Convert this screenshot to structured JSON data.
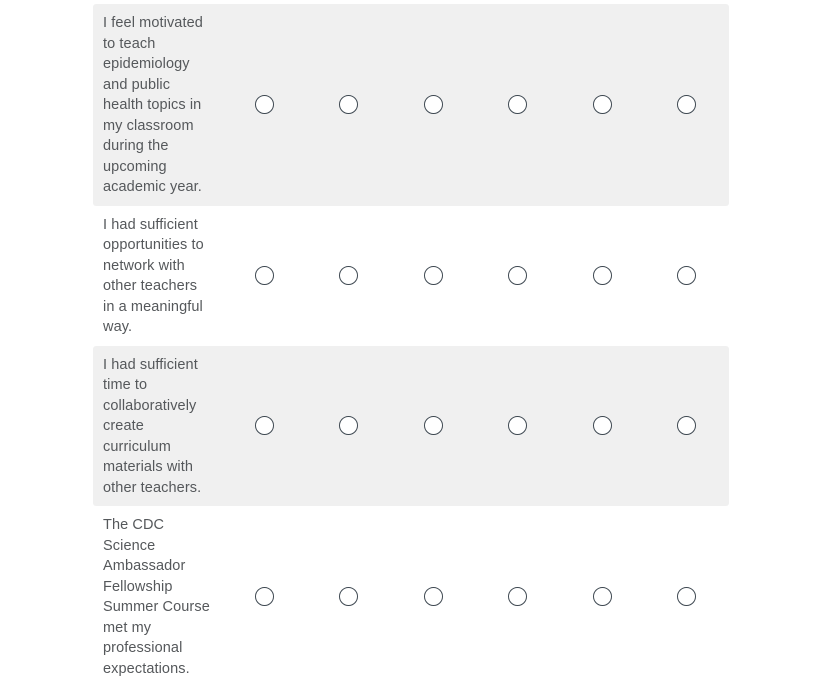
{
  "colors": {
    "row_shaded_bg": "#f0f0f0",
    "statement_text": "#55585b",
    "radio_border": "#3f4952",
    "radio_fill": "#ffffff"
  },
  "matrix": {
    "scale_points": 6,
    "selected": [
      null,
      null,
      null,
      null
    ],
    "rows": [
      {
        "statement": "I feel motivated to teach epidemiology and public health topics in my classroom during the upcoming academic year."
      },
      {
        "statement": "I had sufficient opportunities to network with other teachers in a meaningful way."
      },
      {
        "statement": "I had sufficient time to collaboratively create curriculum materials with other teachers."
      },
      {
        "statement": "The CDC Science Ambassador Fellowship Summer Course met my professional expectations."
      }
    ]
  }
}
